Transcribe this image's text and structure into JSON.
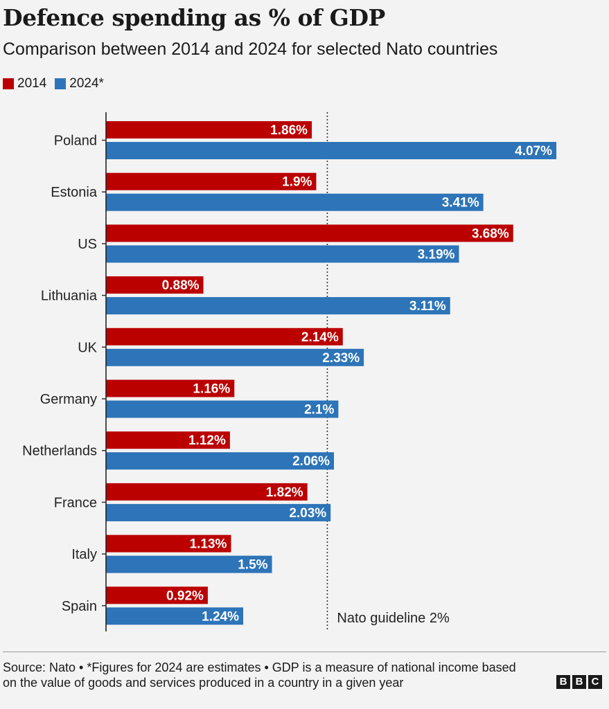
{
  "chart_data": {
    "type": "bar",
    "orientation": "horizontal",
    "title": "Defence spending as % of GDP",
    "subtitle": "Comparison between 2014 and 2024 for selected Nato countries",
    "categories": [
      "Poland",
      "Estonia",
      "US",
      "Lithuania",
      "UK",
      "Germany",
      "Netherlands",
      "France",
      "Italy",
      "Spain"
    ],
    "series": [
      {
        "name": "2014",
        "color": "#bb0000",
        "values": [
          1.86,
          1.9,
          3.68,
          0.88,
          2.14,
          1.16,
          1.12,
          1.82,
          1.13,
          0.92
        ]
      },
      {
        "name": "2024*",
        "color": "#2d74b8",
        "values": [
          4.07,
          3.41,
          3.19,
          3.11,
          2.33,
          2.1,
          2.06,
          2.03,
          1.5,
          1.24
        ]
      }
    ],
    "value_labels": [
      [
        "1.86%",
        "1.9%",
        "3.68%",
        "0.88%",
        "2.14%",
        "1.16%",
        "1.12%",
        "1.82%",
        "1.13%",
        "0.92%"
      ],
      [
        "4.07%",
        "3.41%",
        "3.19%",
        "3.11%",
        "2.33%",
        "2.1%",
        "2.06%",
        "2.03%",
        "1.5%",
        "1.24%"
      ]
    ],
    "xlim": [
      0,
      4.07
    ],
    "reference_line": {
      "value": 2,
      "label": "Nato guideline 2%"
    },
    "legend_position": "top-left",
    "grid": false
  },
  "footer": {
    "source": "Source: Nato • *Figures for 2024 are estimates • GDP is a measure of national income based on the value of goods and services produced in a country in a given year",
    "logo": [
      "B",
      "B",
      "C"
    ]
  }
}
